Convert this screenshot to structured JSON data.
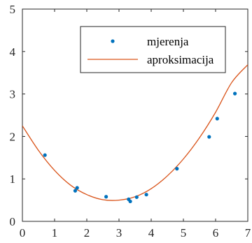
{
  "chart_data": {
    "type": "scatter",
    "xlim": [
      0,
      7
    ],
    "ylim": [
      0,
      5
    ],
    "x_ticks": [
      0,
      1,
      2,
      3,
      4,
      5,
      6,
      7
    ],
    "y_ticks": [
      0,
      1,
      2,
      3,
      4,
      5
    ],
    "x_tick_labels": [
      "0",
      "1",
      "2",
      "3",
      "4",
      "5",
      "6",
      "7"
    ],
    "y_tick_labels": [
      "0",
      "1",
      "2",
      "3",
      "4",
      "5"
    ],
    "grid": false,
    "legend_position": "top-right",
    "series": [
      {
        "name": "mjerenja",
        "kind": "scatter",
        "color": "#0072BD",
        "points": [
          {
            "x": 0.7,
            "y": 1.56
          },
          {
            "x": 1.64,
            "y": 0.72
          },
          {
            "x": 1.7,
            "y": 0.79
          },
          {
            "x": 2.6,
            "y": 0.58
          },
          {
            "x": 3.3,
            "y": 0.52
          },
          {
            "x": 3.35,
            "y": 0.47
          },
          {
            "x": 3.55,
            "y": 0.57
          },
          {
            "x": 3.85,
            "y": 0.63
          },
          {
            "x": 4.8,
            "y": 1.24
          },
          {
            "x": 5.8,
            "y": 1.99
          },
          {
            "x": 6.05,
            "y": 2.42
          },
          {
            "x": 6.6,
            "y": 3.01
          }
        ]
      },
      {
        "name": "aproksimacija",
        "kind": "line",
        "color": "#D95319",
        "points": [
          {
            "x": 0.0,
            "y": 2.25
          },
          {
            "x": 0.5,
            "y": 1.67
          },
          {
            "x": 1.0,
            "y": 1.2
          },
          {
            "x": 1.5,
            "y": 0.85
          },
          {
            "x": 2.0,
            "y": 0.63
          },
          {
            "x": 2.5,
            "y": 0.51
          },
          {
            "x": 3.0,
            "y": 0.5
          },
          {
            "x": 3.5,
            "y": 0.58
          },
          {
            "x": 4.0,
            "y": 0.77
          },
          {
            "x": 4.5,
            "y": 1.07
          },
          {
            "x": 5.0,
            "y": 1.47
          },
          {
            "x": 5.5,
            "y": 1.97
          },
          {
            "x": 6.0,
            "y": 2.57
          },
          {
            "x": 6.5,
            "y": 3.27
          },
          {
            "x": 7.0,
            "y": 3.69
          }
        ]
      }
    ]
  }
}
